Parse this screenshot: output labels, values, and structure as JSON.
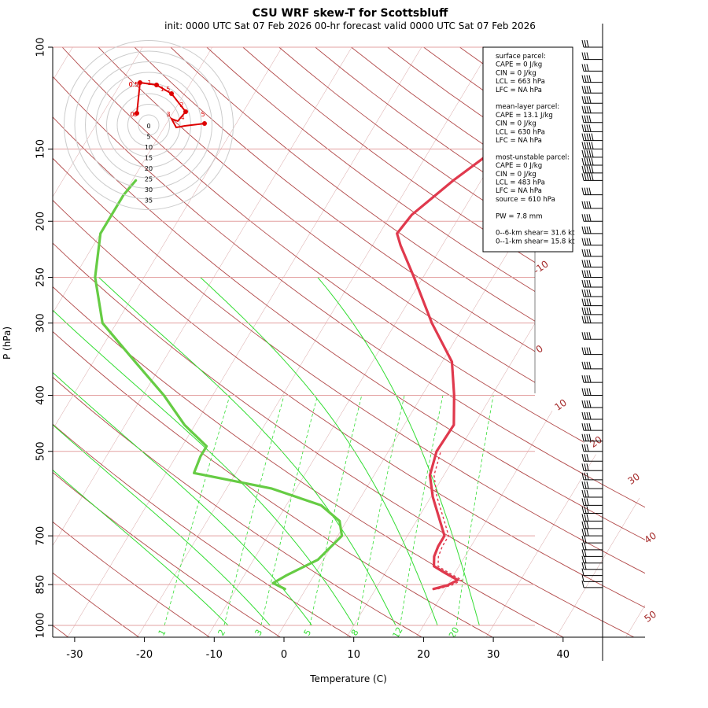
{
  "chart_data": {
    "type": "line",
    "title": "CSU WRF skew-T for Scottsbluff",
    "subtitle": "init: 0000 UTC Sat 07 Feb 2026    00-hr forecast valid 0000 UTC Sat 07 Feb 2026",
    "xlabel": "Temperature (C)",
    "ylabel": "P (hPa)",
    "xlim": [
      -33,
      44
    ],
    "ylim": [
      1050,
      100
    ],
    "y_scale": "log",
    "x_ticks": [
      "-30",
      "-20",
      "-10",
      "0",
      "10",
      "20",
      "30",
      "40"
    ],
    "y_ticks": [
      "100",
      "150",
      "200",
      "250",
      "300",
      "400",
      "500",
      "700",
      "850",
      "1000"
    ],
    "isotherm_labels": [
      "-10",
      "0",
      "10",
      "20",
      "30",
      "40",
      "50"
    ],
    "mixing_ratio_labels": [
      "1",
      "2",
      "3",
      "5",
      "8",
      "12",
      "20"
    ],
    "series": [
      {
        "name": "",
        "color": "#e0394d",
        "points": [
          {
            "p": 865,
            "t": 18.3
          },
          {
            "p": 852,
            "t": 20.0
          },
          {
            "p": 835,
            "t": 21.0
          },
          {
            "p": 812,
            "t": 18.6
          },
          {
            "p": 790,
            "t": 16.4
          },
          {
            "p": 760,
            "t": 15.6
          },
          {
            "p": 730,
            "t": 15.3
          },
          {
            "p": 700,
            "t": 15.3
          },
          {
            "p": 660,
            "t": 13.4
          },
          {
            "p": 600,
            "t": 10.3
          },
          {
            "p": 550,
            "t": 8.0
          },
          {
            "p": 500,
            "t": 6.9
          },
          {
            "p": 450,
            "t": 7.1
          },
          {
            "p": 400,
            "t": 4.6
          },
          {
            "p": 350,
            "t": 1.4
          },
          {
            "p": 300,
            "t": -4.8
          },
          {
            "p": 250,
            "t": -11.3
          },
          {
            "p": 220,
            "t": -16.0
          },
          {
            "p": 210,
            "t": -17.5
          },
          {
            "p": 195,
            "t": -17.0
          },
          {
            "p": 170,
            "t": -14.0
          },
          {
            "p": 152,
            "t": -11.0
          },
          {
            "p": 140,
            "t": -12.0
          },
          {
            "p": 130,
            "t": -13.5
          },
          {
            "p": 112,
            "t": -14.5
          },
          {
            "p": 104,
            "t": -14.8
          }
        ]
      },
      {
        "name": "",
        "color": "#66cc44",
        "points": [
          {
            "p": 865,
            "t": -3.0
          },
          {
            "p": 845,
            "t": -5.2
          },
          {
            "p": 820,
            "t": -4.0
          },
          {
            "p": 770,
            "t": -0.8
          },
          {
            "p": 700,
            "t": 0.6
          },
          {
            "p": 660,
            "t": -1.0
          },
          {
            "p": 620,
            "t": -5.0
          },
          {
            "p": 580,
            "t": -13.5
          },
          {
            "p": 545,
            "t": -26.0
          },
          {
            "p": 510,
            "t": -26.5
          },
          {
            "p": 490,
            "t": -26.5
          },
          {
            "p": 450,
            "t": -31.5
          },
          {
            "p": 400,
            "t": -37.0
          },
          {
            "p": 350,
            "t": -44.0
          },
          {
            "p": 300,
            "t": -52.0
          },
          {
            "p": 250,
            "t": -57.0
          },
          {
            "p": 210,
            "t": -60.0
          },
          {
            "p": 180,
            "t": -60.0
          },
          {
            "p": 170,
            "t": -59.5
          }
        ]
      }
    ],
    "hodograph": {
      "speed_rings": [
        "0",
        "5",
        "10",
        "15",
        "20",
        "25",
        "30",
        "35"
      ],
      "height_labels": [
        "0",
        "0.5",
        "1",
        "1.5",
        "2",
        "3",
        "4",
        "5",
        "6",
        "0.5"
      ],
      "color": "#dd0000"
    },
    "wind_barbs": {
      "pressures": [
        100,
        105,
        110,
        115,
        120,
        125,
        130,
        135,
        140,
        145,
        150,
        155,
        160,
        165,
        170,
        180,
        190,
        200,
        210,
        220,
        230,
        240,
        250,
        260,
        270,
        280,
        290,
        300,
        320,
        340,
        360,
        380,
        400,
        420,
        440,
        460,
        480,
        500,
        520,
        540,
        560,
        580,
        600,
        620,
        640,
        660,
        680,
        700,
        720,
        740,
        760,
        780,
        800,
        820,
        840,
        860
      ],
      "speeds_kt": [
        30,
        30,
        30,
        35,
        35,
        35,
        35,
        40,
        40,
        45,
        50,
        50,
        50,
        45,
        45,
        40,
        40,
        40,
        40,
        40,
        40,
        40,
        40,
        40,
        40,
        40,
        35,
        35,
        35,
        35,
        35,
        35,
        35,
        35,
        35,
        35,
        35,
        30,
        30,
        30,
        30,
        30,
        30,
        30,
        25,
        25,
        25,
        25,
        20,
        20,
        15,
        15,
        15,
        10,
        10,
        10
      ]
    },
    "info_box": [
      "surface parcel:",
      "CAPE = 0 J/kg",
      "CIN = 0 J/kg",
      "LCL = 663 hPa",
      "LFC = NA hPa",
      "",
      "mean-layer parcel:",
      "CAPE = 13.1 J/kg",
      "CIN = 0 J/kg",
      "LCL = 630 hPa",
      "LFC = NA hPa",
      "",
      "most-unstable parcel:",
      "CAPE = 0 J/kg",
      "CIN = 0 J/kg",
      "LCL = 483 hPa",
      "LFC = NA hPa",
      "source = 610 hPa",
      "",
      "PW =  7.8 mm",
      "",
      "0--6-km shear= 31.6 kt",
      "0--1-km shear= 15.8 kt"
    ],
    "colors": {
      "isotherm": "#a52a2a",
      "dry_adiabat": "#a52a2a",
      "moist_adiabat": "#33dd33",
      "mixing_ratio": "#33dd33",
      "isobar": "#e3a0a0",
      "axis": "#000000"
    },
    "grid": true
  }
}
